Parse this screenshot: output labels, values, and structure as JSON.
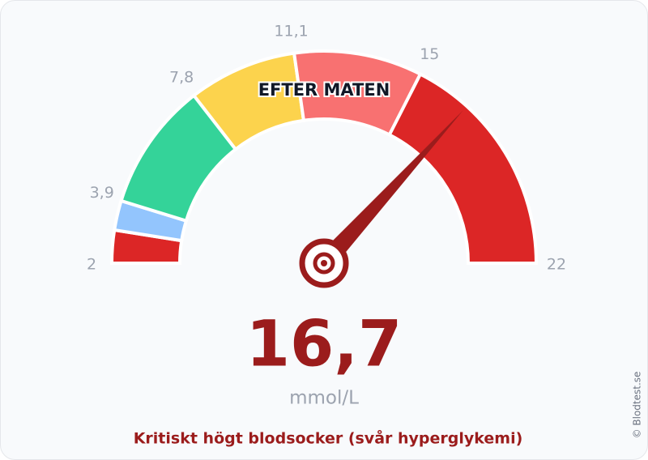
{
  "chart_data": {
    "type": "gauge",
    "title": "EFTER MATEN",
    "range": [
      2,
      22
    ],
    "ticks": [
      2,
      {
        "value": 3.9,
        "label": "3,9"
      },
      {
        "value": 7.8,
        "label": "7,8"
      },
      {
        "value": 11.1,
        "label": "11,1"
      },
      15,
      22
    ],
    "bands": [
      {
        "from": 2,
        "to": 3,
        "color": "#dc2626"
      },
      {
        "from": 3,
        "to": 3.9,
        "color": "#93c5fd"
      },
      {
        "from": 3.9,
        "to": 7.8,
        "color": "#34d399"
      },
      {
        "from": 7.8,
        "to": 11.1,
        "color": "#fcd34d"
      },
      {
        "from": 11.1,
        "to": 15,
        "color": "#f87171"
      },
      {
        "from": 15,
        "to": 22,
        "color": "#dc2626"
      }
    ],
    "value": 16.7,
    "value_label": "16,7",
    "needle_color": "#9b1c1c",
    "unit": "mmol/L",
    "status": "Kritiskt högt blodsocker (svår hyperglykemi)",
    "copyright": "© Blodtest.se"
  }
}
